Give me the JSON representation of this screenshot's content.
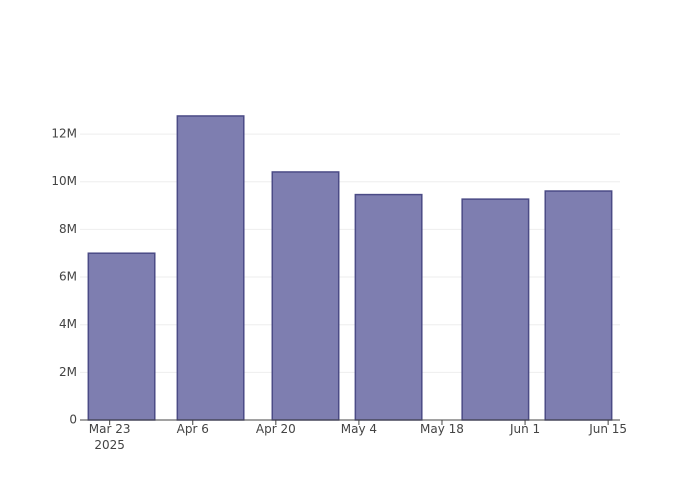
{
  "chart_data": {
    "type": "bar",
    "x": [
      "2025-03-25",
      "2025-04-09",
      "2025-04-25",
      "2025-05-09",
      "2025-05-27",
      "2025-06-10"
    ],
    "values": [
      7000000,
      12760000,
      10410000,
      9460000,
      9270000,
      9610000
    ],
    "color": "#7e7eb0",
    "edge_color": "#4b4b86",
    "xlim": [
      "2025-03-18",
      "2025-06-17"
    ],
    "xticks": [
      {
        "value": "2025-03-23",
        "label": "Mar 23\n2025"
      },
      {
        "value": "2025-04-06",
        "label": "Apr 6"
      },
      {
        "value": "2025-04-20",
        "label": "Apr 20"
      },
      {
        "value": "2025-05-04",
        "label": "May 4"
      },
      {
        "value": "2025-05-18",
        "label": "May 18"
      },
      {
        "value": "2025-06-01",
        "label": "Jun 1"
      },
      {
        "value": "2025-06-15",
        "label": "Jun 15"
      }
    ],
    "bar_width_days": 11.2,
    "ylim": [
      0,
      13430000
    ],
    "yticks": [
      0,
      {
        "value": 2000000,
        "label": "2M"
      },
      {
        "value": 4000000,
        "label": "4M"
      },
      {
        "value": 6000000,
        "label": "6M"
      },
      {
        "value": 8000000,
        "label": "8M"
      },
      {
        "value": 10000000,
        "label": "10M"
      },
      {
        "value": 12000000,
        "label": "12M"
      }
    ],
    "grid": true
  }
}
